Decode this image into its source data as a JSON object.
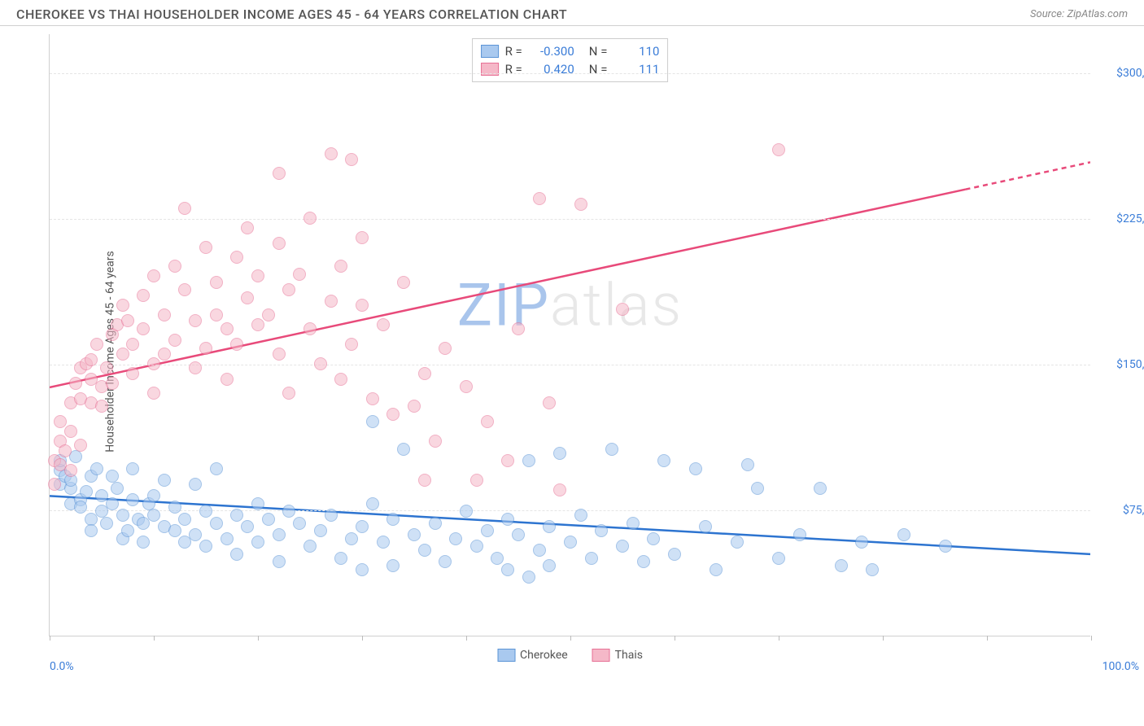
{
  "header": {
    "title": "CHEROKEE VS THAI HOUSEHOLDER INCOME AGES 45 - 64 YEARS CORRELATION CHART",
    "source_prefix": "Source: ",
    "source": "ZipAtlas.com"
  },
  "chart": {
    "type": "scatter",
    "ylabel": "Householder Income Ages 45 - 64 years",
    "xlim": [
      0,
      100
    ],
    "ylim": [
      10000,
      320000
    ],
    "xlabel_min": "0.0%",
    "xlabel_max": "100.0%",
    "yticks": [
      {
        "v": 75000,
        "label": "$75,000"
      },
      {
        "v": 150000,
        "label": "$150,000"
      },
      {
        "v": 225000,
        "label": "$225,000"
      },
      {
        "v": 300000,
        "label": "$300,000"
      }
    ],
    "xticks_pct": [
      0,
      10,
      20,
      30,
      40,
      50,
      60,
      70,
      80,
      90,
      100
    ],
    "background_color": "#ffffff",
    "grid_color": "#e5e5e5",
    "axis_color": "#d0d0d0",
    "tick_label_color": "#3b7dd8",
    "label_fontsize": 14,
    "point_radius": 8,
    "point_opacity": 0.55,
    "watermark": {
      "z": "ZIP",
      "rest": "atlas",
      "z_color": "#a9c5ec",
      "rest_color": "#e8e8e8",
      "fontsize": 72
    }
  },
  "series": [
    {
      "name": "Cherokee",
      "color_fill": "#a9c9ef",
      "color_stroke": "#5b94d6",
      "trend_color": "#2d74d0",
      "trend": {
        "x1": 0,
        "y1": 82000,
        "x2": 100,
        "y2": 52000,
        "dash": false
      },
      "stats": {
        "R": "-0.300",
        "N": "110"
      },
      "points": [
        [
          1,
          95000
        ],
        [
          1,
          88000
        ],
        [
          1,
          100000
        ],
        [
          1.5,
          92000
        ],
        [
          2,
          86000
        ],
        [
          2,
          78000
        ],
        [
          2,
          90000
        ],
        [
          2.5,
          102000
        ],
        [
          3,
          80000
        ],
        [
          3,
          76000
        ],
        [
          3.5,
          84000
        ],
        [
          4,
          92000
        ],
        [
          4,
          70000
        ],
        [
          4,
          64000
        ],
        [
          4.5,
          96000
        ],
        [
          5,
          82000
        ],
        [
          5,
          74000
        ],
        [
          5.5,
          68000
        ],
        [
          6,
          78000
        ],
        [
          6,
          92000
        ],
        [
          6.5,
          86000
        ],
        [
          7,
          72000
        ],
        [
          7,
          60000
        ],
        [
          7.5,
          64000
        ],
        [
          8,
          80000
        ],
        [
          8,
          96000
        ],
        [
          8.5,
          70000
        ],
        [
          9,
          68000
        ],
        [
          9,
          58000
        ],
        [
          9.5,
          78000
        ],
        [
          10,
          82000
        ],
        [
          10,
          72000
        ],
        [
          11,
          66000
        ],
        [
          11,
          90000
        ],
        [
          12,
          64000
        ],
        [
          12,
          76000
        ],
        [
          13,
          58000
        ],
        [
          13,
          70000
        ],
        [
          14,
          88000
        ],
        [
          14,
          62000
        ],
        [
          15,
          74000
        ],
        [
          15,
          56000
        ],
        [
          16,
          68000
        ],
        [
          16,
          96000
        ],
        [
          17,
          60000
        ],
        [
          18,
          72000
        ],
        [
          18,
          52000
        ],
        [
          19,
          66000
        ],
        [
          20,
          78000
        ],
        [
          20,
          58000
        ],
        [
          21,
          70000
        ],
        [
          22,
          62000
        ],
        [
          22,
          48000
        ],
        [
          23,
          74000
        ],
        [
          24,
          68000
        ],
        [
          25,
          56000
        ],
        [
          26,
          64000
        ],
        [
          27,
          72000
        ],
        [
          28,
          50000
        ],
        [
          29,
          60000
        ],
        [
          30,
          44000
        ],
        [
          30,
          66000
        ],
        [
          31,
          78000
        ],
        [
          31,
          120000
        ],
        [
          32,
          58000
        ],
        [
          33,
          70000
        ],
        [
          33,
          46000
        ],
        [
          34,
          106000
        ],
        [
          35,
          62000
        ],
        [
          36,
          54000
        ],
        [
          37,
          68000
        ],
        [
          38,
          48000
        ],
        [
          39,
          60000
        ],
        [
          40,
          74000
        ],
        [
          41,
          56000
        ],
        [
          42,
          64000
        ],
        [
          43,
          50000
        ],
        [
          44,
          70000
        ],
        [
          44,
          44000
        ],
        [
          45,
          62000
        ],
        [
          46,
          100000
        ],
        [
          46,
          40000
        ],
        [
          47,
          54000
        ],
        [
          48,
          66000
        ],
        [
          48,
          46000
        ],
        [
          49,
          104000
        ],
        [
          50,
          58000
        ],
        [
          51,
          72000
        ],
        [
          52,
          50000
        ],
        [
          53,
          64000
        ],
        [
          54,
          106000
        ],
        [
          55,
          56000
        ],
        [
          56,
          68000
        ],
        [
          57,
          48000
        ],
        [
          58,
          60000
        ],
        [
          59,
          100000
        ],
        [
          60,
          52000
        ],
        [
          62,
          96000
        ],
        [
          63,
          66000
        ],
        [
          64,
          44000
        ],
        [
          66,
          58000
        ],
        [
          67,
          98000
        ],
        [
          68,
          86000
        ],
        [
          70,
          50000
        ],
        [
          72,
          62000
        ],
        [
          74,
          86000
        ],
        [
          76,
          46000
        ],
        [
          78,
          58000
        ],
        [
          79,
          44000
        ],
        [
          82,
          62000
        ],
        [
          86,
          56000
        ]
      ]
    },
    {
      "name": "Thais",
      "color_fill": "#f5b8c8",
      "color_stroke": "#e77095",
      "trend_color": "#e84a7a",
      "trend": {
        "x1": 0,
        "y1": 138000,
        "x2": 88,
        "y2": 240000,
        "dash": false
      },
      "trend_ext": {
        "x1": 88,
        "y1": 240000,
        "x2": 100,
        "y2": 254000,
        "dash": true
      },
      "stats": {
        "R": "0.420",
        "N": "111"
      },
      "points": [
        [
          0.5,
          88000
        ],
        [
          0.5,
          100000
        ],
        [
          1,
          110000
        ],
        [
          1,
          98000
        ],
        [
          1,
          120000
        ],
        [
          1.5,
          105000
        ],
        [
          2,
          95000
        ],
        [
          2,
          130000
        ],
        [
          2,
          115000
        ],
        [
          2.5,
          140000
        ],
        [
          3,
          108000
        ],
        [
          3,
          148000
        ],
        [
          3,
          132000
        ],
        [
          3.5,
          150000
        ],
        [
          4,
          142000
        ],
        [
          4,
          130000
        ],
        [
          4,
          152000
        ],
        [
          4.5,
          160000
        ],
        [
          5,
          138000
        ],
        [
          5,
          128000
        ],
        [
          5.5,
          148000
        ],
        [
          6,
          165000
        ],
        [
          6,
          140000
        ],
        [
          6.5,
          170000
        ],
        [
          7,
          155000
        ],
        [
          7,
          180000
        ],
        [
          7.5,
          172000
        ],
        [
          8,
          160000
        ],
        [
          8,
          145000
        ],
        [
          9,
          185000
        ],
        [
          9,
          168000
        ],
        [
          10,
          150000
        ],
        [
          10,
          195000
        ],
        [
          10,
          135000
        ],
        [
          11,
          175000
        ],
        [
          11,
          155000
        ],
        [
          12,
          200000
        ],
        [
          12,
          162000
        ],
        [
          13,
          188000
        ],
        [
          13,
          230000
        ],
        [
          14,
          172000
        ],
        [
          14,
          148000
        ],
        [
          15,
          210000
        ],
        [
          15,
          158000
        ],
        [
          16,
          192000
        ],
        [
          16,
          175000
        ],
        [
          17,
          168000
        ],
        [
          17,
          142000
        ],
        [
          18,
          205000
        ],
        [
          18,
          160000
        ],
        [
          19,
          184000
        ],
        [
          19,
          220000
        ],
        [
          20,
          195000
        ],
        [
          20,
          170000
        ],
        [
          21,
          175000
        ],
        [
          22,
          212000
        ],
        [
          22,
          155000
        ],
        [
          22,
          248000
        ],
        [
          23,
          188000
        ],
        [
          23,
          135000
        ],
        [
          24,
          196000
        ],
        [
          25,
          225000
        ],
        [
          25,
          168000
        ],
        [
          26,
          150000
        ],
        [
          27,
          258000
        ],
        [
          27,
          182000
        ],
        [
          28,
          200000
        ],
        [
          28,
          142000
        ],
        [
          29,
          160000
        ],
        [
          29,
          255000
        ],
        [
          30,
          215000
        ],
        [
          30,
          180000
        ],
        [
          31,
          132000
        ],
        [
          32,
          170000
        ],
        [
          33,
          124000
        ],
        [
          34,
          192000
        ],
        [
          35,
          128000
        ],
        [
          36,
          145000
        ],
        [
          36,
          90000
        ],
        [
          37,
          110000
        ],
        [
          38,
          158000
        ],
        [
          40,
          138000
        ],
        [
          41,
          90000
        ],
        [
          42,
          120000
        ],
        [
          44,
          100000
        ],
        [
          45,
          168000
        ],
        [
          47,
          235000
        ],
        [
          48,
          130000
        ],
        [
          49,
          85000
        ],
        [
          51,
          232000
        ],
        [
          55,
          178000
        ],
        [
          70,
          260000
        ]
      ]
    }
  ],
  "legend": {
    "stat_labels": {
      "R": "R =",
      "N": "N ="
    }
  }
}
